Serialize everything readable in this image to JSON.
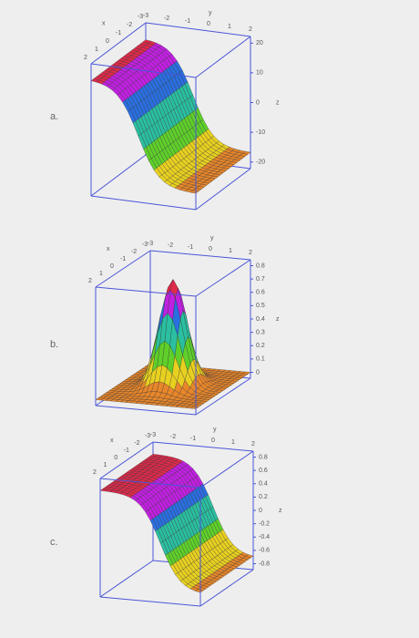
{
  "panels": [
    {
      "label": "a.",
      "x_title": "x",
      "y_title": "y",
      "z_title": "z",
      "x_ticks": [
        "2",
        "1",
        "0",
        "-1",
        "-2",
        "-3"
      ],
      "y_ticks": [
        "-3",
        "-2",
        "-1",
        "0",
        "1",
        "2"
      ],
      "z_ticks": [
        "20",
        "10",
        "0",
        "-10",
        "-20"
      ]
    },
    {
      "label": "b.",
      "x_title": "x",
      "y_title": "y",
      "z_title": "z",
      "x_ticks": [
        "2",
        "1",
        "0",
        "-1",
        "-2",
        "-3"
      ],
      "y_ticks": [
        "-3",
        "-2",
        "-1",
        "0",
        "1",
        "2"
      ],
      "z_ticks": [
        "0.8",
        "0.7",
        "0.6",
        "0.5",
        "0.4",
        "0.3",
        "0.2",
        "0.1",
        "0"
      ]
    },
    {
      "label": "c.",
      "x_title": "x",
      "y_title": "y",
      "z_title": "z",
      "x_ticks": [
        "2",
        "1",
        "0",
        "-1",
        "-2",
        "-3"
      ],
      "y_ticks": [
        "-3",
        "-2",
        "-1",
        "0",
        "1",
        "2"
      ],
      "z_ticks": [
        "0.8",
        "0.6",
        "0.4",
        "0.2",
        "0",
        "-0.2",
        "-0.4",
        "-0.6",
        "-0.8"
      ]
    }
  ]
}
